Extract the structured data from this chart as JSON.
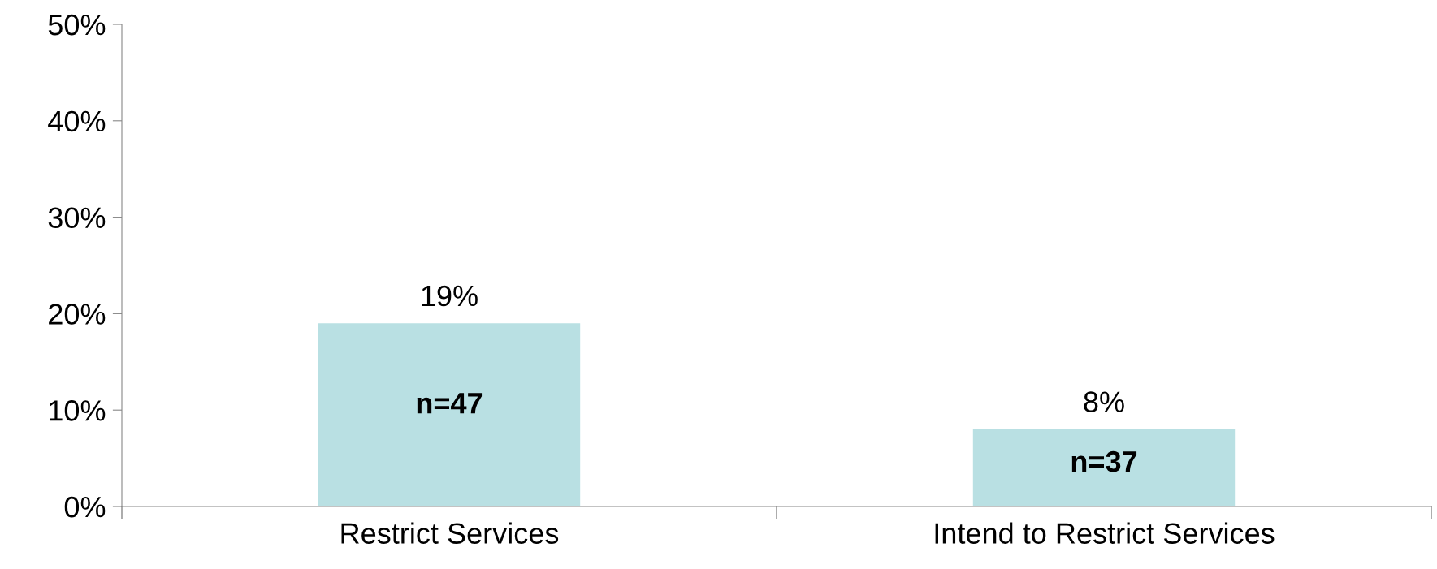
{
  "chart_data": {
    "type": "bar",
    "categories": [
      "Restrict Services",
      "Intend to Restrict Services"
    ],
    "values": [
      19,
      8
    ],
    "color": "#b9e0e3",
    "value_labels": [
      "19%",
      "8%"
    ],
    "ylim": [
      0,
      50
    ],
    "yticks": [
      {
        "value": 0,
        "label": "0%"
      },
      {
        "value": 10,
        "label": "10%"
      },
      {
        "value": 20,
        "label": "20%"
      },
      {
        "value": 30,
        "label": "30%"
      },
      {
        "value": 40,
        "label": "40%"
      },
      {
        "value": 50,
        "label": "50%"
      }
    ],
    "annotations": [
      "n=47",
      "n=37"
    ],
    "grid": false
  }
}
